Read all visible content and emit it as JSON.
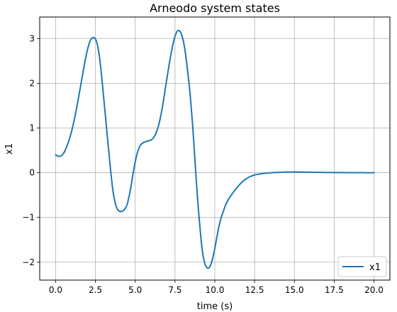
{
  "chart_data": {
    "type": "line",
    "title": "Arneodo system states",
    "xlabel": "time (s)",
    "ylabel": "x1",
    "xlim": [
      -1.0,
      21.0
    ],
    "ylim": [
      -2.4,
      3.48
    ],
    "xticks": [
      0.0,
      2.5,
      5.0,
      7.5,
      10.0,
      12.5,
      15.0,
      17.5,
      20.0
    ],
    "xtick_labels": [
      "0.0",
      "2.5",
      "5.0",
      "7.5",
      "10.0",
      "12.5",
      "15.0",
      "17.5",
      "20.0"
    ],
    "yticks": [
      -2,
      -1,
      0,
      1,
      2,
      3
    ],
    "ytick_labels": [
      "−2",
      "−1",
      "0",
      "1",
      "2",
      "3"
    ],
    "grid": true,
    "legend_position": "lower-right",
    "series": [
      {
        "name": "x1",
        "color": "#1f77b4",
        "x": [
          0.0,
          0.15,
          0.3,
          0.45,
          0.6,
          0.8,
          1.0,
          1.2,
          1.4,
          1.6,
          1.8,
          2.0,
          2.2,
          2.4,
          2.55,
          2.7,
          2.85,
          3.0,
          3.2,
          3.4,
          3.6,
          3.8,
          4.0,
          4.2,
          4.35,
          4.5,
          4.7,
          4.9,
          5.1,
          5.3,
          5.5,
          5.7,
          5.9,
          6.1,
          6.3,
          6.5,
          6.7,
          6.9,
          7.1,
          7.3,
          7.5,
          7.7,
          7.9,
          8.1,
          8.3,
          8.45,
          8.6,
          8.75,
          8.9,
          9.05,
          9.2,
          9.35,
          9.5,
          9.65,
          9.8,
          9.95,
          10.1,
          10.25,
          10.4,
          10.55,
          10.7,
          10.85,
          11.0,
          11.2,
          11.4,
          11.6,
          11.8,
          12.0,
          12.2,
          12.5,
          12.8,
          13.1,
          13.4,
          13.7,
          14.0,
          14.3,
          14.6,
          14.9,
          15.2,
          15.5,
          15.8,
          16.2,
          16.6,
          17.0,
          17.5,
          18.0,
          18.5,
          19.0,
          19.5,
          20.0
        ],
        "y": [
          0.4,
          0.37,
          0.37,
          0.41,
          0.5,
          0.68,
          0.92,
          1.23,
          1.6,
          2.0,
          2.4,
          2.75,
          2.97,
          3.02,
          2.95,
          2.72,
          2.3,
          1.75,
          1.0,
          0.25,
          -0.4,
          -0.75,
          -0.86,
          -0.86,
          -0.81,
          -0.7,
          -0.38,
          0.05,
          0.4,
          0.6,
          0.67,
          0.7,
          0.72,
          0.76,
          0.88,
          1.1,
          1.45,
          1.9,
          2.35,
          2.75,
          3.05,
          3.18,
          3.1,
          2.8,
          2.25,
          1.75,
          1.1,
          0.3,
          -0.5,
          -1.15,
          -1.7,
          -2.0,
          -2.12,
          -2.12,
          -2.0,
          -1.78,
          -1.5,
          -1.22,
          -1.0,
          -0.85,
          -0.7,
          -0.6,
          -0.52,
          -0.42,
          -0.33,
          -0.25,
          -0.18,
          -0.13,
          -0.09,
          -0.05,
          -0.03,
          -0.015,
          -0.005,
          0.003,
          0.008,
          0.012,
          0.015,
          0.016,
          0.016,
          0.015,
          0.012,
          0.01,
          0.008,
          0.006,
          0.004,
          0.003,
          0.002,
          0.001,
          0.0,
          0.0
        ]
      }
    ]
  }
}
